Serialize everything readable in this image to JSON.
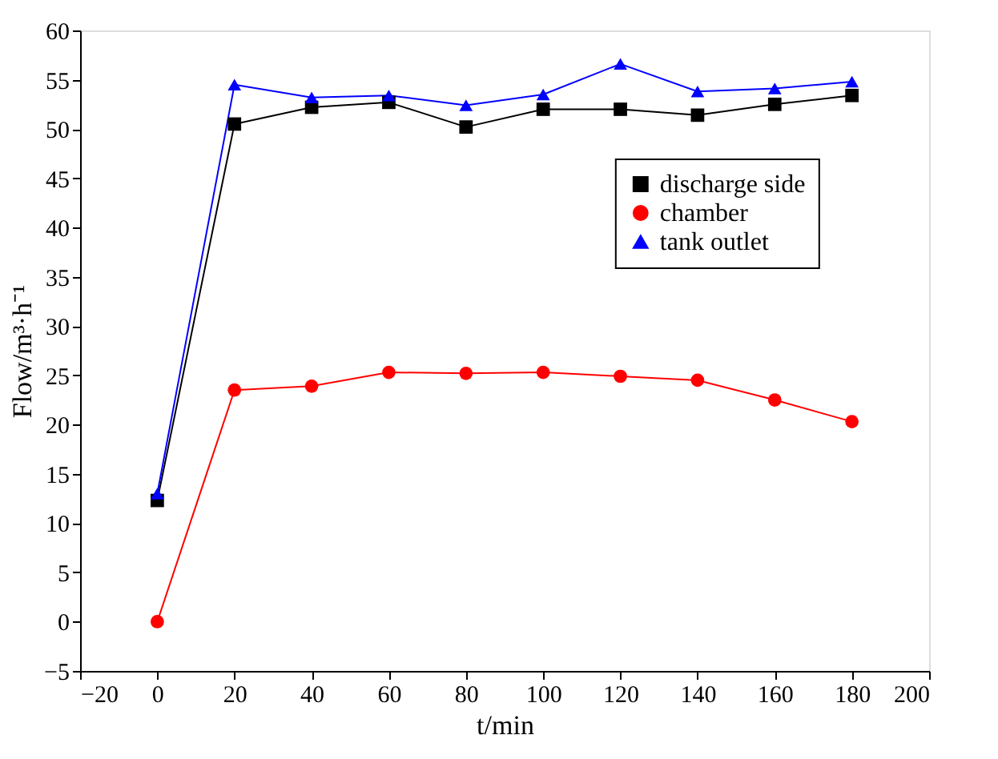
{
  "chart_data": {
    "type": "line",
    "xlabel": "t/min",
    "ylabel": "Flow/m³·h⁻¹",
    "x": [
      0,
      20,
      40,
      60,
      80,
      100,
      120,
      140,
      160,
      180
    ],
    "xlim": [
      -20,
      200
    ],
    "xticks": [
      -20,
      0,
      20,
      40,
      60,
      80,
      100,
      120,
      140,
      160,
      180,
      200
    ],
    "ylim": [
      -5,
      60
    ],
    "yticks": [
      -5,
      0,
      5,
      10,
      15,
      20,
      25,
      30,
      35,
      40,
      45,
      50,
      55,
      60
    ],
    "grid": false,
    "legend": "top right",
    "line_style": "solid",
    "series": [
      {
        "name": "discharge side",
        "color": "#000000",
        "marker": "square",
        "values": [
          12.3,
          50.5,
          52.2,
          52.7,
          50.2,
          52.0,
          52.0,
          51.4,
          52.5,
          53.4
        ]
      },
      {
        "name": "chamber",
        "color": "#ff0000",
        "marker": "circle",
        "values": [
          0.0,
          23.5,
          23.9,
          25.3,
          25.2,
          25.3,
          24.9,
          24.5,
          22.5,
          20.3
        ]
      },
      {
        "name": "tank outlet",
        "color": "#0000ff",
        "marker": "triangle",
        "values": [
          13.0,
          54.5,
          53.2,
          53.4,
          52.4,
          53.5,
          56.6,
          53.8,
          54.1,
          54.8
        ]
      }
    ]
  }
}
